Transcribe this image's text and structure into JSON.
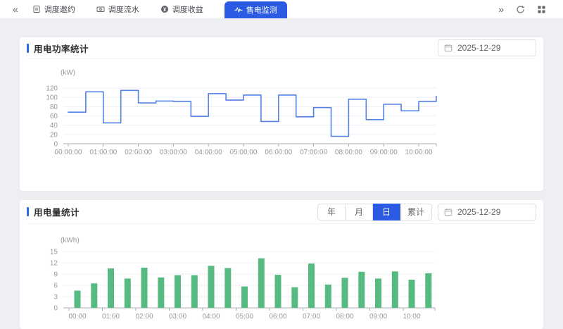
{
  "topbar": {
    "collapse_icon": "«",
    "expand_icon": "»",
    "tabs": [
      {
        "label": "调度邀约",
        "icon": "document-icon",
        "active": false
      },
      {
        "label": "调度流水",
        "icon": "banknote-icon",
        "active": false
      },
      {
        "label": "调度收益",
        "icon": "coin-icon",
        "active": false
      },
      {
        "label": "售电监测",
        "icon": "waveform-icon",
        "active": true
      }
    ],
    "actions": [
      {
        "icon": "refresh-icon"
      },
      {
        "icon": "grid-icon"
      }
    ]
  },
  "power_section": {
    "title": "用电功率统计",
    "date": "2025-12-29"
  },
  "energy_section": {
    "title": "用电量统计",
    "date": "2025-12-29",
    "range_buttons": [
      {
        "label": "年",
        "active": false
      },
      {
        "label": "月",
        "active": false
      },
      {
        "label": "日",
        "active": true
      },
      {
        "label": "累计",
        "active": false
      }
    ]
  },
  "colors": {
    "active_tab_blue": "#2b5be3",
    "accent_blue": "#2b6ae3",
    "line_blue": "#5381e8",
    "bar_green": "#57ba81",
    "page_bg": "#edeff3"
  },
  "chart_data": [
    {
      "type": "line",
      "step": true,
      "title": "用电功率统计",
      "ylabel": "(kW)",
      "ylim": [
        0,
        120
      ],
      "yticks": [
        0,
        20,
        40,
        60,
        80,
        100,
        120
      ],
      "grid": true,
      "legend": "none",
      "series_color": "#5381e8",
      "x_tick_labels": [
        "00:00:00",
        "01:00:00",
        "02:00:00",
        "03:00:00",
        "04:00:00",
        "05:00:00",
        "06:00:00",
        "07:00:00",
        "08:00:00",
        "09:00:00",
        "10:00:00"
      ],
      "x": [
        "00:00",
        "00:30",
        "01:00",
        "01:30",
        "02:00",
        "02:30",
        "03:00",
        "03:30",
        "04:00",
        "04:30",
        "05:00",
        "05:30",
        "06:00",
        "06:30",
        "07:00",
        "07:30",
        "08:00",
        "08:30",
        "09:00",
        "09:30",
        "10:00",
        "10:30"
      ],
      "values": [
        68,
        112,
        45,
        115,
        88,
        92,
        91,
        59,
        108,
        94,
        105,
        48,
        105,
        58,
        78,
        16,
        96,
        52,
        85,
        71,
        91,
        102
      ]
    },
    {
      "type": "bar",
      "title": "用电量统计",
      "ylabel": "(kWh)",
      "ylim": [
        0,
        15
      ],
      "yticks": [
        0,
        3,
        6,
        9,
        12,
        15
      ],
      "grid": true,
      "legend": "none",
      "series_color": "#57ba81",
      "x_tick_labels": [
        "00:00",
        "01:00",
        "02:00",
        "03:00",
        "04:00",
        "05:00",
        "06:00",
        "07:00",
        "08:00",
        "09:00",
        "10:00"
      ],
      "categories": [
        "00:00",
        "00:30",
        "01:00",
        "01:30",
        "02:00",
        "02:30",
        "03:00",
        "03:30",
        "04:00",
        "04:30",
        "05:00",
        "05:30",
        "06:00",
        "06:30",
        "07:00",
        "07:30",
        "08:00",
        "08:30",
        "09:00",
        "09:30",
        "10:00",
        "10:30"
      ],
      "values": [
        4.6,
        6.5,
        10.5,
        7.8,
        10.7,
        8.1,
        8.7,
        8.7,
        11.2,
        10.6,
        5.7,
        13.2,
        8.8,
        5.5,
        11.8,
        6.2,
        8.0,
        9.6,
        7.8,
        9.7,
        7.5,
        9.2
      ]
    }
  ]
}
